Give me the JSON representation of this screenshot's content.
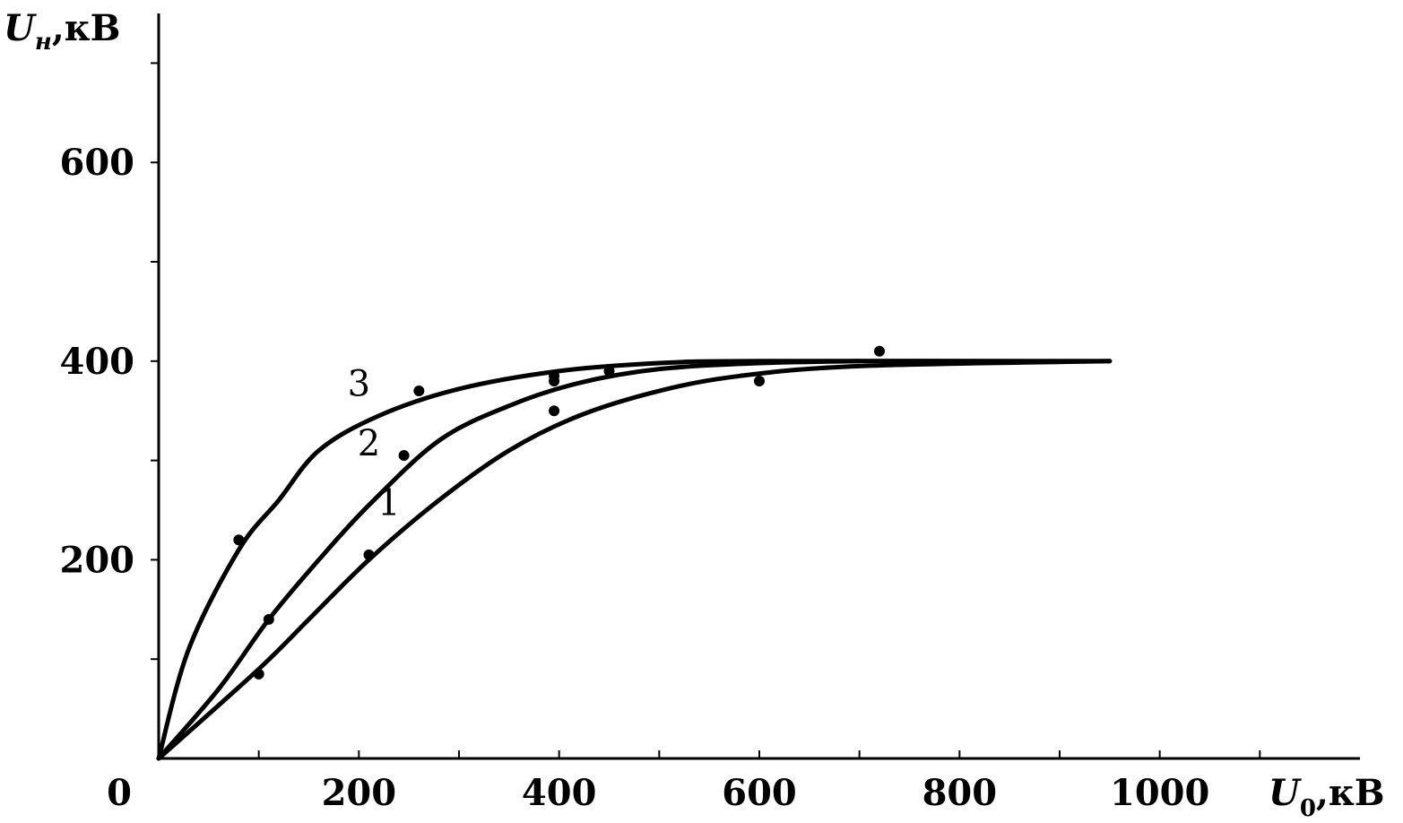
{
  "chart_data": {
    "type": "line",
    "xlabel": {
      "symbol": "U",
      "subscript": "0",
      "unit": ",кВ"
    },
    "ylabel": {
      "symbol": "U",
      "subscript": "н",
      "unit": ",кВ"
    },
    "xlim": [
      0,
      1200
    ],
    "ylim": [
      0,
      750
    ],
    "x_ticks": [
      0,
      200,
      400,
      600,
      800,
      1000
    ],
    "x_tick_labels": [
      "0",
      "200",
      "400",
      "600",
      "800",
      "1000"
    ],
    "x_minor_ticks": [
      100,
      300,
      500,
      700,
      900,
      1100
    ],
    "y_ticks": [
      200,
      400,
      600
    ],
    "y_tick_labels": [
      "200",
      "400",
      "600"
    ],
    "y_minor_ticks": [
      100,
      300,
      500,
      700
    ],
    "grid": false,
    "series": [
      {
        "name": "1",
        "line": [
          [
            0,
            0
          ],
          [
            100,
            90
          ],
          [
            150,
            140
          ],
          [
            210,
            200
          ],
          [
            280,
            260
          ],
          [
            350,
            310
          ],
          [
            420,
            345
          ],
          [
            500,
            370
          ],
          [
            580,
            385
          ],
          [
            700,
            395
          ],
          [
            950,
            400
          ]
        ],
        "points": [
          [
            100,
            85
          ],
          [
            210,
            205
          ],
          [
            395,
            350
          ],
          [
            600,
            380
          ]
        ],
        "label_at": [
          230,
          245
        ]
      },
      {
        "name": "2",
        "line": [
          [
            0,
            0
          ],
          [
            60,
            70
          ],
          [
            110,
            140
          ],
          [
            160,
            200
          ],
          [
            210,
            255
          ],
          [
            280,
            320
          ],
          [
            350,
            355
          ],
          [
            420,
            378
          ],
          [
            500,
            392
          ],
          [
            600,
            398
          ],
          [
            700,
            400
          ]
        ],
        "points": [
          [
            110,
            140
          ],
          [
            245,
            305
          ],
          [
            395,
            380
          ],
          [
            450,
            390
          ],
          [
            720,
            410
          ]
        ],
        "label_at": [
          210,
          305
        ]
      },
      {
        "name": "3",
        "line": [
          [
            0,
            0
          ],
          [
            30,
            110
          ],
          [
            80,
            210
          ],
          [
            120,
            260
          ],
          [
            160,
            310
          ],
          [
            220,
            345
          ],
          [
            300,
            372
          ],
          [
            400,
            390
          ],
          [
            500,
            398
          ],
          [
            600,
            400
          ],
          [
            950,
            400
          ]
        ],
        "points": [
          [
            80,
            220
          ],
          [
            260,
            370
          ],
          [
            395,
            385
          ]
        ],
        "label_at": [
          200,
          365
        ]
      }
    ]
  }
}
